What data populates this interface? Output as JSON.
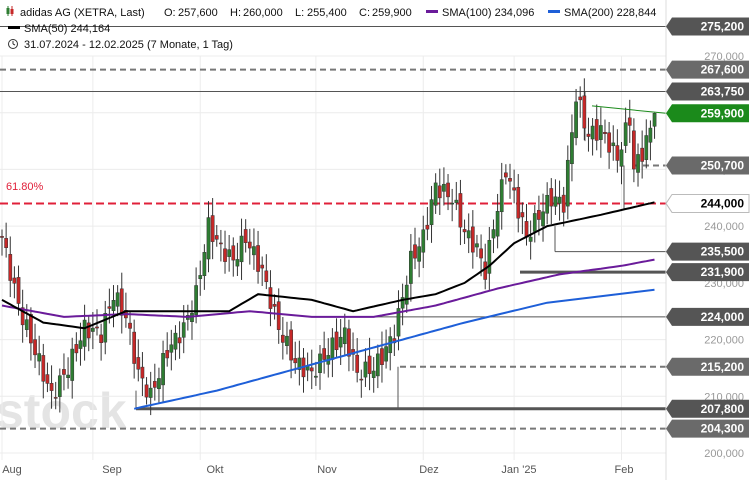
{
  "header": {
    "title": "adidas AG (XETRA, Last)",
    "ohlc": [
      {
        "label": "O:",
        "value": "257,600"
      },
      {
        "label": "H:",
        "value": "260,000"
      },
      {
        "label": "L:",
        "value": "255,400"
      },
      {
        "label": "C:",
        "value": "259,900"
      }
    ],
    "sma100": "SMA(100)  234,096",
    "sma200": "SMA(200)  228,844",
    "sma50": "SMA(50)  244,164",
    "range": "31.07.2024 - 12.02.2025   (7 Monate, 1 Tag)"
  },
  "watermark": "stock",
  "colors": {
    "up": "#2e7d32",
    "down": "#c62828",
    "sma50": "#000000",
    "sma100": "#6a1b9a",
    "sma200": "#1e5fd8",
    "fib": "#e0203a",
    "last": "#1b8a1b",
    "dark_box": "#555555",
    "grey_box": "#6a6a6a"
  },
  "chart_data": {
    "type": "candlestick",
    "title": "adidas AG (XETRA, Last)",
    "x_labels": [
      "Aug",
      "Sep",
      "Okt",
      "Nov",
      "Dez",
      "Jan '25",
      "Feb"
    ],
    "y_ticks": [
      "270,000",
      "260,000",
      "250,000",
      "240,000",
      "230,000",
      "220,000",
      "210,000",
      "200,000"
    ],
    "ylim": [
      200,
      278
    ],
    "fib_label": "61.80%",
    "levels": [
      {
        "label": "275,200",
        "style": "box"
      },
      {
        "label": "267,600",
        "style": "dashed-box"
      },
      {
        "label": "263,750",
        "style": "box"
      },
      {
        "label": "259,900",
        "style": "last"
      },
      {
        "label": "250,700",
        "style": "dashed-box"
      },
      {
        "label": "244,000",
        "style": "fib"
      },
      {
        "label": "235,500",
        "style": "box"
      },
      {
        "label": "231,900",
        "style": "box"
      },
      {
        "label": "224,000",
        "style": "box"
      },
      {
        "label": "215,200",
        "style": "dashed-box"
      },
      {
        "label": "207,800",
        "style": "box"
      },
      {
        "label": "204,300",
        "style": "dashed-box"
      }
    ],
    "close_keys": [
      [
        0,
        238
      ],
      [
        4,
        226
      ],
      [
        8,
        218
      ],
      [
        12,
        210
      ],
      [
        16,
        215
      ],
      [
        20,
        222
      ],
      [
        24,
        221
      ],
      [
        27,
        228
      ],
      [
        30,
        224
      ],
      [
        33,
        214
      ],
      [
        36,
        210
      ],
      [
        40,
        218
      ],
      [
        44,
        222
      ],
      [
        47,
        228
      ],
      [
        50,
        240
      ],
      [
        53,
        236
      ],
      [
        56,
        234
      ],
      [
        59,
        238
      ],
      [
        63,
        232
      ],
      [
        67,
        222
      ],
      [
        71,
        216
      ],
      [
        75,
        214
      ],
      [
        79,
        218
      ],
      [
        83,
        221
      ],
      [
        86,
        214
      ],
      [
        90,
        215
      ],
      [
        92,
        217
      ],
      [
        95,
        221
      ],
      [
        99,
        234
      ],
      [
        102,
        238
      ],
      [
        105,
        247
      ],
      [
        109,
        245
      ],
      [
        112,
        239
      ],
      [
        115,
        236
      ],
      [
        117,
        232
      ],
      [
        119,
        240
      ],
      [
        122,
        250
      ],
      [
        125,
        243
      ],
      [
        127,
        238
      ],
      [
        130,
        242
      ],
      [
        133,
        245
      ],
      [
        136,
        244
      ],
      [
        139,
        263
      ],
      [
        142,
        256
      ],
      [
        145,
        257
      ],
      [
        149,
        252
      ],
      [
        152,
        259
      ],
      [
        153,
        250
      ],
      [
        155,
        253
      ],
      [
        157,
        257
      ],
      [
        158,
        259.9
      ]
    ],
    "sma50_keys": [
      [
        0,
        227
      ],
      [
        10,
        223
      ],
      [
        20,
        222
      ],
      [
        30,
        225
      ],
      [
        40,
        225
      ],
      [
        55,
        225
      ],
      [
        62,
        228
      ],
      [
        75,
        227
      ],
      [
        85,
        225
      ],
      [
        97,
        227
      ],
      [
        105,
        228
      ],
      [
        112,
        230
      ],
      [
        118,
        233
      ],
      [
        124,
        237
      ],
      [
        132,
        240
      ],
      [
        145,
        242
      ],
      [
        158,
        244.2
      ]
    ],
    "sma100_keys": [
      [
        0,
        226
      ],
      [
        15,
        224
      ],
      [
        30,
        224.5
      ],
      [
        45,
        224
      ],
      [
        60,
        225
      ],
      [
        75,
        224
      ],
      [
        90,
        224
      ],
      [
        105,
        226
      ],
      [
        120,
        229
      ],
      [
        135,
        231.5
      ],
      [
        150,
        233
      ],
      [
        158,
        234.1
      ]
    ],
    "sma200_keys": [
      [
        32,
        207.8
      ],
      [
        52,
        211
      ],
      [
        72,
        215
      ],
      [
        92,
        219
      ],
      [
        112,
        223
      ],
      [
        132,
        226.5
      ],
      [
        158,
        228.8
      ]
    ]
  }
}
